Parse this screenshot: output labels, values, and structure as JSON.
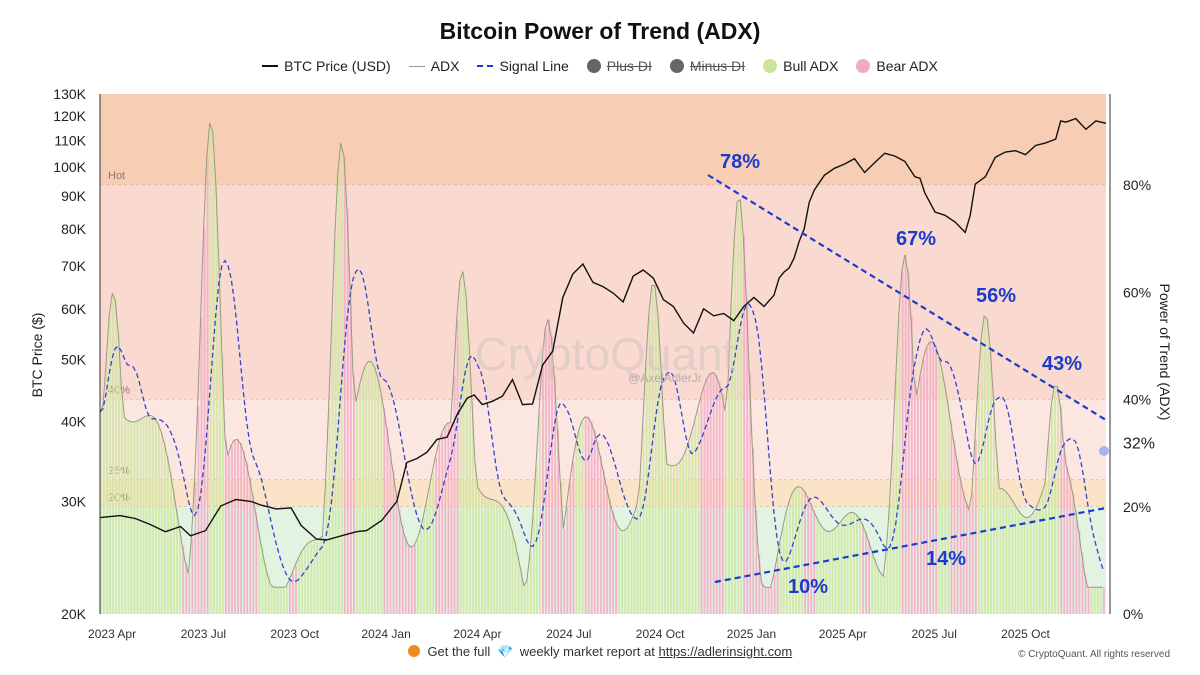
{
  "chart_data": {
    "type": "line",
    "title": "Bitcoin Power of Trend (ADX)",
    "legend": [
      {
        "label": "BTC Price (USD)",
        "style": "line",
        "color": "#111111"
      },
      {
        "label": "ADX",
        "style": "line",
        "color": "#999999"
      },
      {
        "label": "Signal Line",
        "style": "dashed",
        "color": "#2233cc"
      },
      {
        "label": "Plus DI",
        "style": "dot",
        "color": "#666666",
        "hidden": true
      },
      {
        "label": "Minus DI",
        "style": "dot",
        "color": "#666666",
        "hidden": true
      },
      {
        "label": "Bull ADX",
        "style": "dot",
        "color": "#c9e59a"
      },
      {
        "label": "Bear ADX",
        "style": "dot",
        "color": "#f1a9c4"
      }
    ],
    "legend_position": "top",
    "y_left_label": "BTC Price ($)",
    "y_left_scale": "log",
    "y_left_range": [
      20000,
      130000
    ],
    "y_left_ticks": [
      "130K",
      "120K",
      "110K",
      "100K",
      "90K",
      "80K",
      "70K",
      "60K",
      "50K",
      "40K",
      "30K",
      "20K"
    ],
    "y_right_label": "Power of Trend (ADX)",
    "y_right_range": [
      0,
      0.97
    ],
    "y_right_ticks": [
      "80%",
      "60%",
      "40%",
      "20%",
      "0%"
    ],
    "current_adx_label": "32%",
    "x_ticks": [
      "2023 Apr",
      "2023 Jul",
      "2023 Oct",
      "2024 Jan",
      "2024 Apr",
      "2024 Jul",
      "2024 Oct",
      "2025 Jan",
      "2025 Apr",
      "2025 Jul",
      "2025 Oct"
    ],
    "zones": [
      {
        "label": "Hot",
        "from": 0.8,
        "to": 0.97,
        "color": "#f7cdb4"
      },
      {
        "label": "40%",
        "from": 0.4,
        "to": 0.8,
        "color": "#fadad0"
      },
      {
        "label": "25%",
        "from": 0.25,
        "to": 0.4,
        "color": "#fbe6e0"
      },
      {
        "label": "20%",
        "from": 0.2,
        "to": 0.25,
        "color": "#fbe3c8"
      },
      {
        "label": "",
        "from": 0,
        "to": 0.2,
        "color": "#e3f3e1"
      }
    ],
    "btc_price": [
      [
        0.0,
        28300
      ],
      [
        0.02,
        28500
      ],
      [
        0.035,
        28200
      ],
      [
        0.05,
        27600
      ],
      [
        0.065,
        26900
      ],
      [
        0.08,
        27400
      ],
      [
        0.09,
        26500
      ],
      [
        0.105,
        27000
      ],
      [
        0.12,
        29500
      ],
      [
        0.135,
        30200
      ],
      [
        0.15,
        30000
      ],
      [
        0.16,
        29600
      ],
      [
        0.175,
        29200
      ],
      [
        0.19,
        29300
      ],
      [
        0.2,
        27500
      ],
      [
        0.215,
        26200
      ],
      [
        0.225,
        26100
      ],
      [
        0.24,
        26500
      ],
      [
        0.255,
        26900
      ],
      [
        0.265,
        27000
      ],
      [
        0.28,
        28000
      ],
      [
        0.295,
        30000
      ],
      [
        0.305,
        34500
      ],
      [
        0.315,
        35000
      ],
      [
        0.325,
        35800
      ],
      [
        0.335,
        37500
      ],
      [
        0.345,
        37800
      ],
      [
        0.355,
        41000
      ],
      [
        0.365,
        43500
      ],
      [
        0.372,
        44000
      ],
      [
        0.38,
        42500
      ],
      [
        0.39,
        43000
      ],
      [
        0.4,
        43800
      ],
      [
        0.41,
        46500
      ],
      [
        0.42,
        42500
      ],
      [
        0.43,
        42600
      ],
      [
        0.44,
        49000
      ],
      [
        0.45,
        51500
      ],
      [
        0.46,
        62500
      ],
      [
        0.47,
        68000
      ],
      [
        0.48,
        70500
      ],
      [
        0.49,
        66000
      ],
      [
        0.5,
        65000
      ],
      [
        0.51,
        63500
      ],
      [
        0.52,
        61500
      ],
      [
        0.53,
        67500
      ],
      [
        0.54,
        69000
      ],
      [
        0.55,
        67000
      ],
      [
        0.56,
        62000
      ],
      [
        0.57,
        60500
      ],
      [
        0.58,
        57000
      ],
      [
        0.59,
        55000
      ],
      [
        0.6,
        60000
      ],
      [
        0.61,
        58500
      ],
      [
        0.62,
        59000
      ],
      [
        0.63,
        57500
      ],
      [
        0.64,
        60500
      ],
      [
        0.65,
        62500
      ],
      [
        0.66,
        60500
      ],
      [
        0.67,
        63000
      ],
      [
        0.675,
        67000
      ],
      [
        0.68,
        68500
      ],
      [
        0.685,
        69500
      ],
      [
        0.69,
        72000
      ],
      [
        0.695,
        76500
      ],
      [
        0.7,
        80000
      ],
      [
        0.705,
        88000
      ],
      [
        0.71,
        92000
      ],
      [
        0.72,
        97000
      ],
      [
        0.73,
        99500
      ],
      [
        0.74,
        101000
      ],
      [
        0.75,
        103000
      ],
      [
        0.76,
        98000
      ],
      [
        0.77,
        101500
      ],
      [
        0.78,
        105000
      ],
      [
        0.79,
        104000
      ],
      [
        0.8,
        102000
      ],
      [
        0.81,
        96500
      ],
      [
        0.815,
        96000
      ],
      [
        0.82,
        91000
      ],
      [
        0.83,
        85000
      ],
      [
        0.84,
        84000
      ],
      [
        0.85,
        82000
      ],
      [
        0.86,
        79000
      ],
      [
        0.865,
        84000
      ],
      [
        0.87,
        94000
      ],
      [
        0.88,
        96500
      ],
      [
        0.89,
        103500
      ],
      [
        0.9,
        105500
      ],
      [
        0.91,
        106000
      ],
      [
        0.92,
        104500
      ],
      [
        0.93,
        108000
      ],
      [
        0.94,
        109000
      ],
      [
        0.95,
        110500
      ],
      [
        0.955,
        118000
      ],
      [
        0.96,
        117500
      ],
      [
        0.97,
        119000
      ],
      [
        0.98,
        114500
      ],
      [
        0.99,
        118000
      ],
      [
        1.0,
        117000
      ]
    ],
    "annotations": [
      "78%",
      "67%",
      "56%",
      "43%",
      "10%",
      "14%"
    ],
    "footer_text": "Get the full",
    "footer_text2": "weekly market report at",
    "footer_link": "https://adlerinsight.com",
    "watermark": "CryptoQuant",
    "watermark_handle": "@AxelAdlerJr",
    "copyright": "© CryptoQuant. All rights reserved"
  }
}
